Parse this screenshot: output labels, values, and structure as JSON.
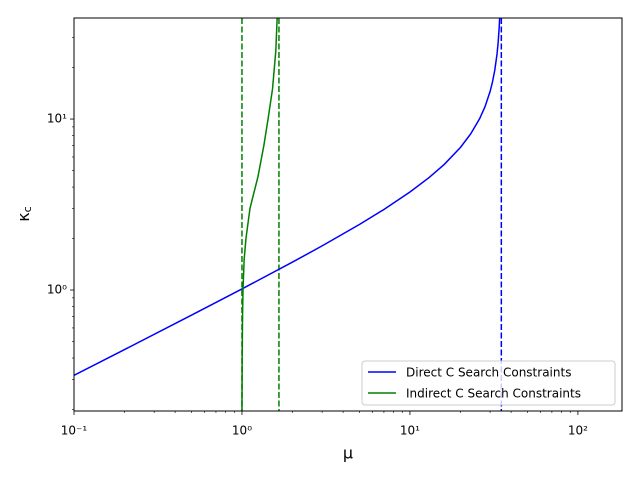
{
  "chart_data": {
    "type": "line",
    "x_label": "μ",
    "y_label": "κc",
    "xscale": "log",
    "yscale": "log",
    "xlim": [
      0.1,
      183
    ],
    "ylim": [
      0.196,
      39
    ],
    "xticks": [
      {
        "value": 0.1,
        "label": "10⁻¹"
      },
      {
        "value": 1,
        "label": "10⁰"
      },
      {
        "value": 10,
        "label": "10¹"
      },
      {
        "value": 100,
        "label": "10²"
      }
    ],
    "yticks": [
      {
        "value": 1,
        "label": "10⁰"
      },
      {
        "value": 10,
        "label": "10¹"
      }
    ],
    "minor_ticks": true,
    "legend": "lower right",
    "series": [
      {
        "name": "Direct C Search Constraints",
        "color": "#0000ff",
        "x": [
          0.1,
          0.2,
          0.5,
          1,
          2,
          3,
          5,
          7,
          10,
          13,
          16,
          20,
          23,
          26,
          28,
          30,
          31,
          32,
          33,
          33.5,
          34,
          34.3
        ],
        "values": [
          0.3167,
          0.4485,
          0.7122,
          1.0146,
          1.4565,
          1.8114,
          2.4152,
          2.958,
          3.742,
          4.548,
          5.429,
          6.831,
          8.19,
          10.056,
          11.83,
          14.49,
          16.47,
          19.32,
          24.03,
          27.96,
          34.5,
          41.41
        ]
      },
      {
        "name": "Indirect C Search Constraints",
        "color": "#008000",
        "x": [
          1.0,
          1.003,
          1.008,
          1.014,
          1.03,
          1.056,
          1.116,
          1.245,
          1.35,
          1.43,
          1.52,
          1.59,
          1.62,
          1.63
        ],
        "values": [
          0.196,
          0.4,
          0.7,
          1,
          1.5,
          2,
          3,
          4.6,
          7,
          10,
          15,
          25,
          39,
          45
        ]
      }
    ],
    "vlines": [
      {
        "x": 35,
        "color": "#0000ff"
      },
      {
        "x": 1.0,
        "color": "#008000"
      },
      {
        "x": 1.66,
        "color": "#008000"
      }
    ]
  }
}
